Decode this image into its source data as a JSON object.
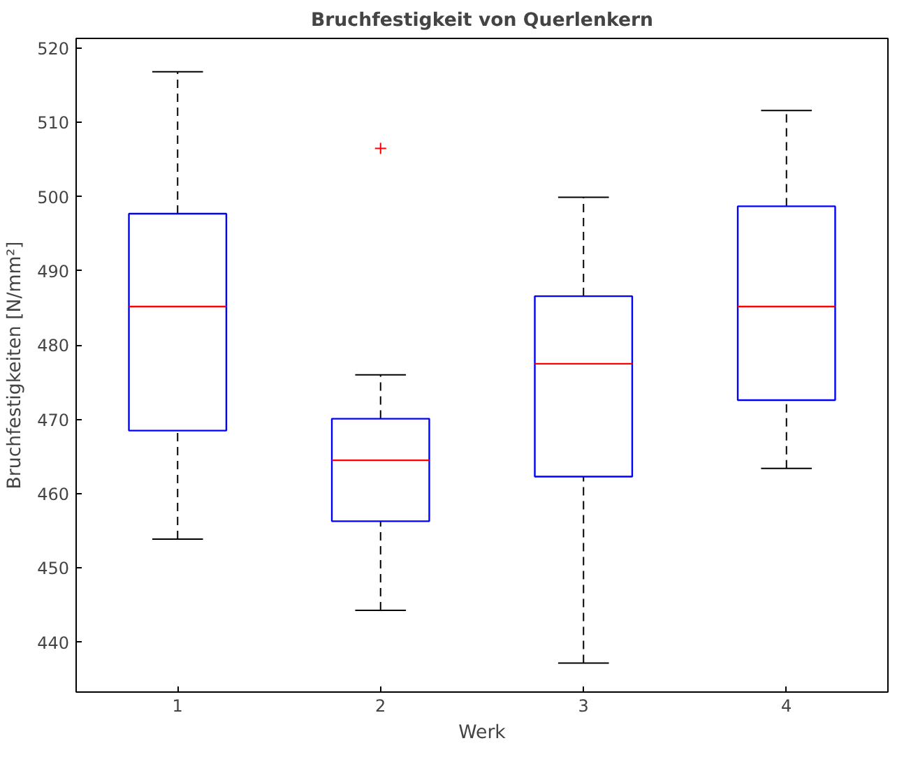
{
  "chart_data": {
    "type": "box",
    "title": "Bruchfestigkeit von Querlenkern",
    "xlabel": "Werk",
    "ylabel": "Bruchfestigkeiten [N/mm²]",
    "categories": [
      "1",
      "2",
      "3",
      "4"
    ],
    "boxes": [
      {
        "low": 453.9,
        "q1": 468.5,
        "median": 485.2,
        "q3": 497.7,
        "high": 516.8
      },
      {
        "low": 444.3,
        "q1": 456.3,
        "median": 464.5,
        "q3": 470.1,
        "high": 476.0,
        "outliers": [
          506.5
        ]
      },
      {
        "low": 437.2,
        "q1": 462.3,
        "median": 477.5,
        "q3": 486.6,
        "high": 499.9
      },
      {
        "low": 463.4,
        "q1": 472.6,
        "median": 485.2,
        "q3": 498.7,
        "high": 511.6
      }
    ],
    "color": "#0000ff",
    "marker": "cross",
    "grid": false,
    "ylim": [
      433.3,
      521.3
    ],
    "yticks": [
      440,
      450,
      460,
      470,
      480,
      490,
      500,
      510,
      520
    ]
  }
}
